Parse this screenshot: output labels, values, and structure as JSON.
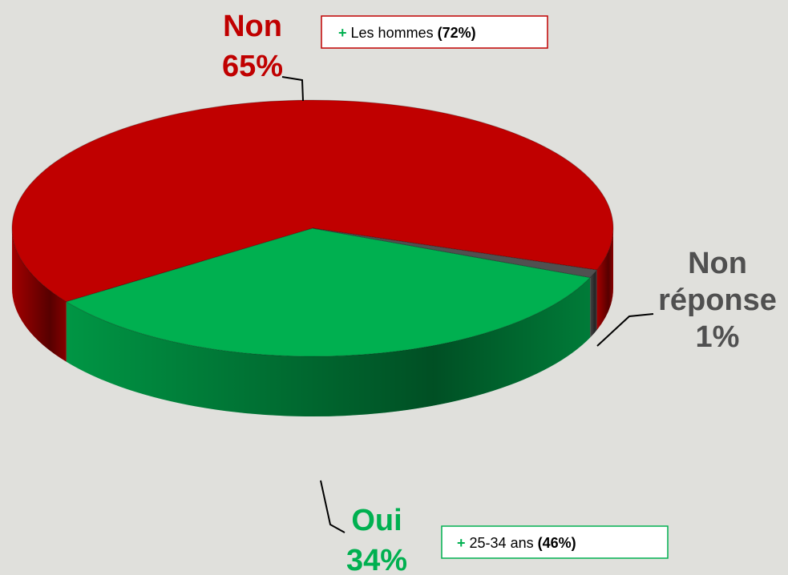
{
  "chart_data": {
    "type": "pie",
    "categories": [
      "Non",
      "Oui",
      "Non réponse"
    ],
    "values": [
      65,
      34,
      1
    ],
    "value_labels": [
      "65%",
      "34%",
      "1%"
    ],
    "colors": [
      "#c00000",
      "#00b050",
      "#505050"
    ],
    "label_colors": [
      "#c00000",
      "#00b050",
      "#505050"
    ],
    "annotations": [
      {
        "marker": "+",
        "text": "Les hommes",
        "value_label": "(72%)",
        "border": "#c00000"
      },
      {
        "marker": "+",
        "text": "25-34 ans",
        "value_label": "(46%)",
        "border": "#00b050"
      }
    ]
  }
}
